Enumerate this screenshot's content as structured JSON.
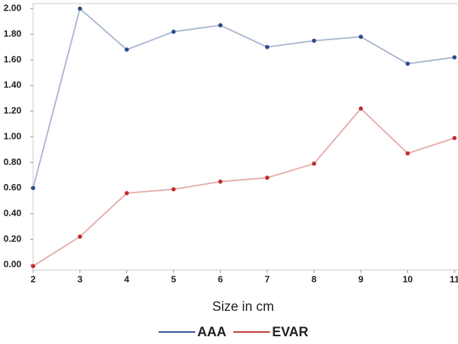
{
  "chart_data": {
    "type": "line",
    "x_label": "Size in cm",
    "x": [
      2,
      3,
      4,
      5,
      6,
      7,
      8,
      9,
      10,
      11
    ],
    "series": [
      {
        "name": "AAA",
        "color": "#2e4a8f",
        "values": [
          0.6,
          2.0,
          1.68,
          1.82,
          1.87,
          1.7,
          1.75,
          1.78,
          1.57,
          1.62
        ]
      },
      {
        "name": "EVAR",
        "color": "#c0302f",
        "values": [
          -0.01,
          0.22,
          0.56,
          0.59,
          0.65,
          0.68,
          0.79,
          1.22,
          0.87,
          0.99
        ]
      }
    ],
    "xlim": [
      2,
      11
    ],
    "xticks": [
      2,
      3,
      4,
      5,
      6,
      7,
      8,
      9,
      10,
      11
    ],
    "ylim": [
      -0.04,
      2.04
    ],
    "yticks": [
      {
        "value": 0,
        "label": "0.00"
      },
      {
        "value": 0.2,
        "label": "0.20"
      },
      {
        "value": 0.4,
        "label": "0.40"
      },
      {
        "value": 0.6,
        "label": "0.60"
      },
      {
        "value": 0.8,
        "label": "0.80"
      },
      {
        "value": 1,
        "label": "1.00"
      },
      {
        "value": 1.2,
        "label": "1.20"
      },
      {
        "value": 1.4,
        "label": "1.40"
      },
      {
        "value": 1.6,
        "label": "1.60"
      },
      {
        "value": 1.8,
        "label": "1.80"
      },
      {
        "value": 2,
        "label": "2.00"
      }
    ],
    "legend": "bottom"
  }
}
